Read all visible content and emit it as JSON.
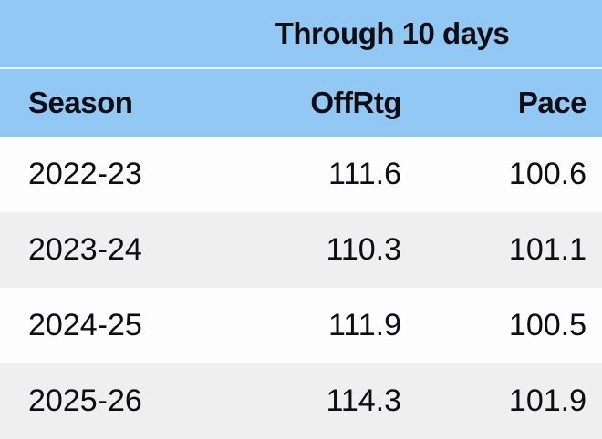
{
  "table": {
    "title": "Through 10 days",
    "columns": [
      "Season",
      "OffRtg",
      "Pace"
    ],
    "rows": [
      {
        "season": "2022-23",
        "offrtg": "111.6",
        "pace": "100.6"
      },
      {
        "season": "2023-24",
        "offrtg": "110.3",
        "pace": "101.1"
      },
      {
        "season": "2024-25",
        "offrtg": "111.9",
        "pace": "100.5"
      },
      {
        "season": "2025-26",
        "offrtg": "114.3",
        "pace": "101.9"
      }
    ]
  },
  "colors": {
    "header_blue": "#91c8f4",
    "divider": "#e9f4fe",
    "row_white": "#fdfdfe",
    "row_gray": "#efefef",
    "text": "#0d0d12"
  }
}
